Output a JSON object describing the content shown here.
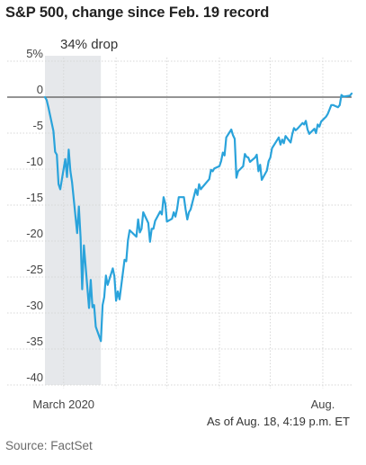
{
  "title": "S&P 500, change since Feb. 19 record",
  "note": "As of Aug. 18, 4:19 p.m. ET",
  "source": "Source: FactSet",
  "chart_data": {
    "type": "line",
    "title": "S&P 500, change since Feb. 19 record",
    "ylim": [
      -40,
      5
    ],
    "yticks": [
      5,
      0,
      -5,
      -10,
      -15,
      -20,
      -25,
      -30,
      -35,
      -40
    ],
    "ytick_labels": [
      "5%",
      "0",
      "-5",
      "-10",
      "-15",
      "-20",
      "-25",
      "-30",
      "-35",
      "-40"
    ],
    "xlabels": [
      "March 2020",
      "Aug."
    ],
    "grid": true,
    "shaded_region": {
      "label": "34% drop",
      "start": "2020-02-19",
      "end": "2020-03-23"
    },
    "line_color": "#2aa3db",
    "shade_color": "#e6e8eb",
    "series": [
      {
        "x": [
          "2020-02-19",
          "2020-02-20",
          "2020-02-21",
          "2020-02-24",
          "2020-02-25",
          "2020-02-26",
          "2020-02-27",
          "2020-02-28",
          "2020-03-02",
          "2020-03-03",
          "2020-03-04",
          "2020-03-05",
          "2020-03-06",
          "2020-03-09",
          "2020-03-10",
          "2020-03-11",
          "2020-03-12",
          "2020-03-13",
          "2020-03-16",
          "2020-03-17",
          "2020-03-18",
          "2020-03-19",
          "2020-03-20",
          "2020-03-23",
          "2020-03-24",
          "2020-03-25",
          "2020-03-26",
          "2020-03-27",
          "2020-03-30",
          "2020-03-31",
          "2020-04-01",
          "2020-04-02",
          "2020-04-03",
          "2020-04-06",
          "2020-04-07",
          "2020-04-08",
          "2020-04-09",
          "2020-04-13",
          "2020-04-14",
          "2020-04-15",
          "2020-04-16",
          "2020-04-17",
          "2020-04-20",
          "2020-04-21",
          "2020-04-22",
          "2020-04-23",
          "2020-04-24",
          "2020-04-27",
          "2020-04-28",
          "2020-04-29",
          "2020-04-30",
          "2020-05-01",
          "2020-05-04",
          "2020-05-05",
          "2020-05-06",
          "2020-05-07",
          "2020-05-08",
          "2020-05-11",
          "2020-05-12",
          "2020-05-13",
          "2020-05-14",
          "2020-05-15",
          "2020-05-18",
          "2020-05-19",
          "2020-05-20",
          "2020-05-21",
          "2020-05-22",
          "2020-05-26",
          "2020-05-27",
          "2020-05-28",
          "2020-05-29",
          "2020-06-01",
          "2020-06-02",
          "2020-06-03",
          "2020-06-04",
          "2020-06-05",
          "2020-06-08",
          "2020-06-09",
          "2020-06-10",
          "2020-06-11",
          "2020-06-12",
          "2020-06-15",
          "2020-06-16",
          "2020-06-17",
          "2020-06-18",
          "2020-06-19",
          "2020-06-22",
          "2020-06-23",
          "2020-06-24",
          "2020-06-25",
          "2020-06-26",
          "2020-06-29",
          "2020-06-30",
          "2020-07-01",
          "2020-07-02",
          "2020-07-06",
          "2020-07-07",
          "2020-07-08",
          "2020-07-09",
          "2020-07-10",
          "2020-07-13",
          "2020-07-14",
          "2020-07-15",
          "2020-07-16",
          "2020-07-17",
          "2020-07-20",
          "2020-07-21",
          "2020-07-22",
          "2020-07-23",
          "2020-07-24",
          "2020-07-27",
          "2020-07-28",
          "2020-07-29",
          "2020-07-30",
          "2020-07-31",
          "2020-08-03",
          "2020-08-04",
          "2020-08-05",
          "2020-08-06",
          "2020-08-07",
          "2020-08-10",
          "2020-08-11",
          "2020-08-12",
          "2020-08-13",
          "2020-08-14",
          "2020-08-17",
          "2020-08-18"
        ],
        "values": [
          0,
          -0.4,
          -1.4,
          -4.7,
          -7.6,
          -8,
          -12.1,
          -12.8,
          -8.6,
          -11.1,
          -7.3,
          -10.3,
          -11.8,
          -18.9,
          -15.2,
          -19.5,
          -26.7,
          -20.6,
          -29.3,
          -25.4,
          -29.2,
          -28.9,
          -31.9,
          -33.9,
          -28.9,
          -27.8,
          -24.8,
          -26.1,
          -23.8,
          -24.9,
          -28.3,
          -27.0,
          -28.1,
          -22.6,
          -22.8,
          -19.9,
          -18.5,
          -19.4,
          -17.0,
          -18.8,
          -18.3,
          -16.0,
          -17.5,
          -20.1,
          -18.3,
          -18.3,
          -17.2,
          -15.9,
          -16.3,
          -13.9,
          -14.8,
          -17.3,
          -16.9,
          -16.0,
          -16.6,
          -15.5,
          -13.9,
          -13.9,
          -15.6,
          -17.0,
          -16.0,
          -15.6,
          -12.8,
          -13.6,
          -12.1,
          -12.8,
          -12.5,
          -11.4,
          -10.1,
          -10.3,
          -9.9,
          -9.6,
          -8.9,
          -7.7,
          -8.1,
          -5.6,
          -4.5,
          -5.3,
          -5.8,
          -11.2,
          -10.3,
          -9.6,
          -7.9,
          -8.3,
          -8.4,
          -9.0,
          -8.4,
          -8.0,
          -10.3,
          -9.4,
          -11.5,
          -10.2,
          -8.9,
          -8.4,
          -7.1,
          -5.6,
          -6.6,
          -5.9,
          -6.4,
          -5.4,
          -6.3,
          -5.1,
          -4.3,
          -4.6,
          -4.4,
          -3.6,
          -3.8,
          -3.3,
          -4.5,
          -5.1,
          -4.4,
          -5.0,
          -3.8,
          -4.1,
          -3.4,
          -2.7,
          -2.3,
          -1.7,
          -1.1,
          -1.1,
          -1.4,
          -1.1,
          0.3,
          0.1,
          0.1,
          0.2,
          0.5
        ]
      }
    ]
  }
}
